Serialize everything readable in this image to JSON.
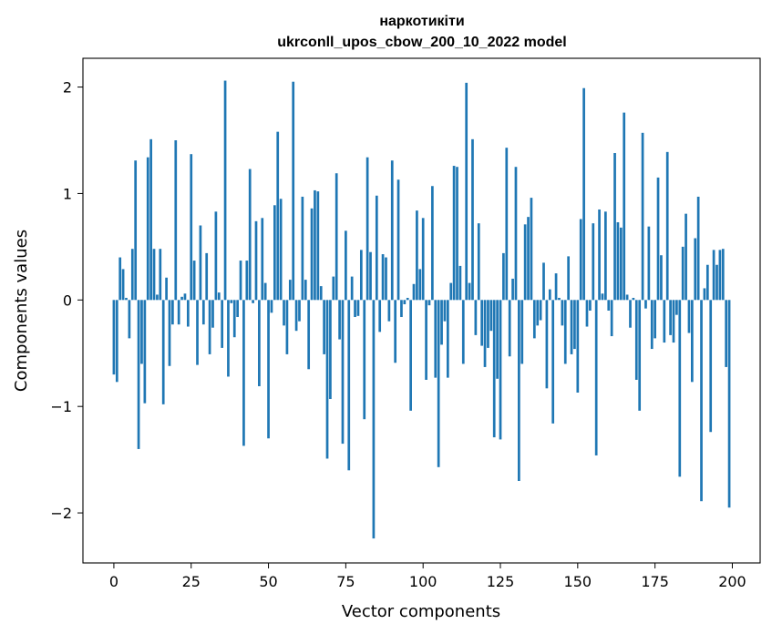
{
  "chart_data": {
    "type": "bar",
    "title": "наркотикіти",
    "subtitle": "ukrconll_upos_cbow_200_10_2022 model",
    "xlabel": "Vector components",
    "ylabel": "Components values",
    "xlim": [
      -10,
      209
    ],
    "ylim": [
      -2.47,
      2.27
    ],
    "xticks": [
      0,
      25,
      50,
      75,
      100,
      125,
      150,
      175,
      200
    ],
    "yticks": [
      -2,
      -1,
      0,
      1,
      2
    ],
    "ytick_labels": [
      "−2",
      "−1",
      "0",
      "1",
      "2"
    ],
    "grid": false,
    "bar_color": "#1f77b4",
    "x": [
      0,
      1,
      2,
      3,
      4,
      5,
      6,
      7,
      8,
      9,
      10,
      11,
      12,
      13,
      14,
      15,
      16,
      17,
      18,
      19,
      20,
      21,
      22,
      23,
      24,
      25,
      26,
      27,
      28,
      29,
      30,
      31,
      32,
      33,
      34,
      35,
      36,
      37,
      38,
      39,
      40,
      41,
      42,
      43,
      44,
      45,
      46,
      47,
      48,
      49,
      50,
      51,
      52,
      53,
      54,
      55,
      56,
      57,
      58,
      59,
      60,
      61,
      62,
      63,
      64,
      65,
      66,
      67,
      68,
      69,
      70,
      71,
      72,
      73,
      74,
      75,
      76,
      77,
      78,
      79,
      80,
      81,
      82,
      83,
      84,
      85,
      86,
      87,
      88,
      89,
      90,
      91,
      92,
      93,
      94,
      95,
      96,
      97,
      98,
      99,
      100,
      101,
      102,
      103,
      104,
      105,
      106,
      107,
      108,
      109,
      110,
      111,
      112,
      113,
      114,
      115,
      116,
      117,
      118,
      119,
      120,
      121,
      122,
      123,
      124,
      125,
      126,
      127,
      128,
      129,
      130,
      131,
      132,
      133,
      134,
      135,
      136,
      137,
      138,
      139,
      140,
      141,
      142,
      143,
      144,
      145,
      146,
      147,
      148,
      149,
      150,
      151,
      152,
      153,
      154,
      155,
      156,
      157,
      158,
      159,
      160,
      161,
      162,
      163,
      164,
      165,
      166,
      167,
      168,
      169,
      170,
      171,
      172,
      173,
      174,
      175,
      176,
      177,
      178,
      179,
      180,
      181,
      182,
      183,
      184,
      185,
      186,
      187,
      188,
      189,
      190,
      191,
      192,
      193,
      194,
      195,
      196,
      197,
      198,
      199
    ],
    "values": [
      -0.7,
      -0.77,
      0.4,
      0.29,
      0.02,
      -0.36,
      0.48,
      1.31,
      -1.4,
      -0.6,
      -0.97,
      1.34,
      1.51,
      0.48,
      0.05,
      0.48,
      -0.98,
      0.21,
      -0.62,
      -0.23,
      1.5,
      -0.23,
      0.03,
      0.06,
      -0.25,
      1.37,
      0.37,
      -0.61,
      0.7,
      -0.23,
      0.44,
      -0.51,
      -0.26,
      0.83,
      0.07,
      -0.45,
      2.06,
      -0.72,
      -0.03,
      -0.35,
      -0.16,
      0.37,
      -1.37,
      0.37,
      1.23,
      -0.03,
      0.74,
      -0.81,
      0.77,
      0.16,
      -1.3,
      -0.12,
      0.89,
      1.58,
      0.95,
      -0.24,
      -0.51,
      0.19,
      2.05,
      -0.29,
      -0.2,
      0.97,
      0.19,
      -0.65,
      0.86,
      1.03,
      1.02,
      0.13,
      -0.51,
      -1.49,
      -0.93,
      0.22,
      1.19,
      -0.37,
      -1.35,
      0.65,
      -1.6,
      0.22,
      -0.16,
      -0.15,
      0.47,
      -1.12,
      1.34,
      0.45,
      -2.24,
      0.98,
      -0.3,
      0.43,
      0.4,
      -0.2,
      1.31,
      -0.59,
      1.13,
      -0.16,
      -0.04,
      0.02,
      -1.04,
      0.15,
      0.84,
      0.29,
      0.77,
      -0.75,
      -0.05,
      1.07,
      -0.73,
      -1.57,
      -0.42,
      -0.2,
      -0.73,
      0.16,
      1.26,
      1.25,
      0.32,
      -0.6,
      2.04,
      0.16,
      1.51,
      -0.33,
      0.72,
      -0.43,
      -0.63,
      -0.45,
      -0.29,
      -1.29,
      -0.74,
      -1.31,
      0.44,
      1.43,
      -0.53,
      0.2,
      1.25,
      -1.7,
      -0.6,
      0.71,
      0.78,
      0.96,
      -0.36,
      -0.24,
      -0.19,
      0.35,
      -0.83,
      0.1,
      -1.16,
      0.25,
      0.02,
      -0.24,
      -0.6,
      0.41,
      -0.51,
      -0.46,
      -0.87,
      0.76,
      1.99,
      -0.25,
      -0.1,
      0.72,
      -1.46,
      0.85,
      0.06,
      0.83,
      -0.1,
      -0.34,
      1.38,
      0.73,
      0.68,
      1.76,
      0.05,
      -0.26,
      0.02,
      -0.75,
      -1.04,
      1.57,
      -0.08,
      0.69,
      -0.46,
      -0.36,
      1.15,
      0.42,
      -0.4,
      1.39,
      -0.33,
      -0.4,
      -0.14,
      -1.66,
      0.5,
      0.81,
      -0.31,
      -0.77,
      0.58,
      0.97,
      -1.89,
      0.11,
      0.33,
      -1.24,
      0.47,
      0.33,
      0.47,
      0.48,
      -0.63,
      -1.95
    ]
  }
}
